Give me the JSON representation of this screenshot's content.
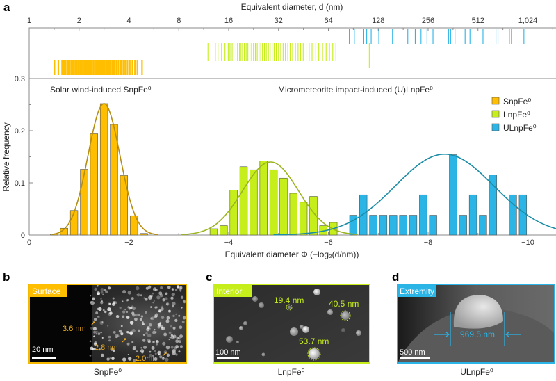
{
  "panel_labels": {
    "a": "a",
    "b": "b",
    "c": "c",
    "d": "d"
  },
  "chart_data": [
    {
      "type": "scatter",
      "subtype": "rug",
      "xlabel": "Equivalent diameter, d (nm)",
      "xscale": "log2",
      "xlim": [
        1,
        1500
      ],
      "x_ticks": [
        "1",
        "2",
        "4",
        "8",
        "16",
        "32",
        "64",
        "128",
        "256",
        "512",
        "1,024"
      ],
      "x_tick_values": [
        1,
        2,
        4,
        8,
        16,
        32,
        64,
        128,
        256,
        512,
        1024
      ],
      "series": [
        {
          "name": "SnpFe⁰",
          "color": "#FFBE00",
          "d": [
            1.42,
            1.5,
            1.58,
            1.62,
            1.66,
            1.7,
            1.73,
            1.76,
            1.8,
            1.83,
            1.86,
            1.9,
            1.93,
            1.97,
            2.0,
            2.04,
            2.08,
            2.12,
            2.16,
            2.2,
            2.24,
            2.28,
            2.32,
            2.36,
            2.4,
            2.45,
            2.5,
            2.55,
            2.6,
            2.65,
            2.7,
            2.75,
            2.8,
            2.86,
            2.92,
            2.98,
            3.04,
            3.1,
            3.17,
            3.24,
            3.3,
            3.38,
            3.46,
            3.55,
            3.6,
            3.7,
            3.8,
            3.92,
            4.05,
            4.2,
            4.35,
            4.5,
            4.8
          ]
        },
        {
          "name": "LnpFe⁰",
          "color": "#C5EE1A",
          "d": [
            12.0,
            13.3,
            13.8,
            14.5,
            15.2,
            15.9,
            16.3,
            16.8,
            17.2,
            17.7,
            18.1,
            18.6,
            19.0,
            19.4,
            19.9,
            20.4,
            20.9,
            21.5,
            22.0,
            22.6,
            23.2,
            23.8,
            24.4,
            25.0,
            25.6,
            26.3,
            27.0,
            27.8,
            28.5,
            29.3,
            30.1,
            31.0,
            32.0,
            33.0,
            34.1,
            35.2,
            36.4,
            37.6,
            38.9,
            40.5,
            42.0,
            43.5,
            45.1,
            47.0,
            49.0,
            51.0,
            53.7,
            56.0,
            59.0,
            62.0,
            65.0,
            68.0,
            71.0,
            113.0
          ]
        },
        {
          "name": "ULnpFe⁰",
          "color": "#2BB4E6",
          "d": [
            85.6,
            91.8,
            104.7,
            109,
            116,
            129,
            156,
            193,
            214,
            232,
            252,
            274,
            340,
            350,
            372,
            428,
            458,
            549,
            657,
            676,
            792,
            815,
            969.5
          ]
        }
      ]
    },
    {
      "type": "bar",
      "subtype": "histogram-with-gaussian-fit",
      "xlabel": "Equivalent diameter Φ (−log₂(d/nm))",
      "ylabel": "Relative frequency",
      "xlim": [
        0,
        -10.6
      ],
      "ylim": [
        0,
        0.3
      ],
      "x_ticks": [
        "0",
        "−2",
        "−4",
        "−6",
        "−8",
        "−10"
      ],
      "x_tick_values": [
        0,
        -2,
        -4,
        -6,
        -8,
        -10
      ],
      "y_ticks": [
        "0",
        "0.1",
        "0.2",
        "0.3"
      ],
      "y_tick_values": [
        0,
        0.1,
        0.2,
        0.3
      ],
      "bin_width": 0.15,
      "legend_position": "top-right",
      "annotations": {
        "solar": "Solar wind-induced SnpFe⁰",
        "micro": "Micrometeorite impact-induced (U)LnpFe⁰"
      },
      "series": [
        {
          "name": "SnpFe⁰",
          "color": "#FFBE00",
          "curve_color": "#B58E12",
          "x": [
            -0.5,
            -0.7,
            -0.9,
            -1.1,
            -1.3,
            -1.5,
            -1.7,
            -1.9,
            -2.1,
            -2.3
          ],
          "values": [
            0.002,
            0.013,
            0.047,
            0.126,
            0.194,
            0.252,
            0.212,
            0.114,
            0.037,
            0.003
          ],
          "fit": {
            "mu": -1.5,
            "sigma": 0.32,
            "amplitude": 0.252,
            "range": [
              -0.45,
              -2.6
            ]
          }
        },
        {
          "name": "LnpFe⁰",
          "color": "#C5EE1A",
          "curve_color": "#9AB51E",
          "x": [
            -3.7,
            -3.9,
            -4.1,
            -4.3,
            -4.5,
            -4.7,
            -4.9,
            -5.1,
            -5.3,
            -5.5,
            -5.7,
            -5.9,
            -6.1
          ],
          "values": [
            0.012,
            0.018,
            0.086,
            0.131,
            0.125,
            0.142,
            0.125,
            0.109,
            0.08,
            0.063,
            0.074,
            0.018,
            0.024
          ],
          "fit": {
            "mu": -4.84,
            "sigma": 0.56,
            "amplitude": 0.14,
            "range": [
              -3.05,
              -6.6
            ]
          }
        },
        {
          "name": "ULnpFe⁰",
          "color": "#2BB4E6",
          "curve_color": "#1A8CA6",
          "x": [
            -6.5,
            -6.7,
            -6.9,
            -7.1,
            -7.3,
            -7.5,
            -7.7,
            -7.9,
            -8.1,
            -8.5,
            -8.7,
            -8.9,
            -9.1,
            -9.3,
            -9.7,
            -9.9
          ],
          "values": [
            0.038,
            0.077,
            0.038,
            0.038,
            0.038,
            0.038,
            0.038,
            0.077,
            0.038,
            0.154,
            0.038,
            0.077,
            0.038,
            0.115,
            0.077,
            0.077
          ],
          "fit": {
            "mu": -8.33,
            "sigma": 0.99,
            "amplitude": 0.155,
            "range": [
              -4.9,
              -10.6
            ]
          }
        }
      ]
    }
  ],
  "panels": {
    "b": {
      "tag": "Surface",
      "tag_color": "#FFBE00",
      "annotations": [
        "3.6 nm",
        "2.8 nm",
        "2.0 nm"
      ],
      "scale_bar": "20 nm",
      "caption": "SnpFe⁰"
    },
    "c": {
      "tag": "Interior",
      "tag_color": "#C5EE1A",
      "annotations": [
        "19.4 nm",
        "40.5 nm",
        "53.7 nm"
      ],
      "scale_bar": "100 nm",
      "caption": "LnpFe⁰"
    },
    "d": {
      "tag": "Extremity",
      "tag_color": "#2BB4E6",
      "annotations": [
        "969.5 nm"
      ],
      "scale_bar": "500 nm",
      "caption": "ULnpFe⁰"
    }
  }
}
